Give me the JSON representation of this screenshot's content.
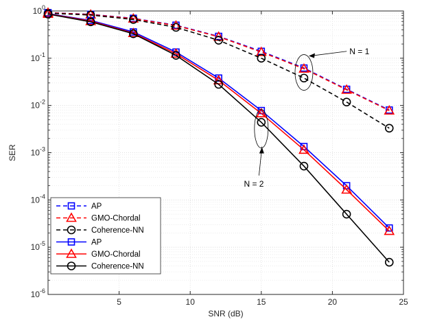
{
  "chart_data": {
    "type": "line",
    "title": "",
    "xlabel": "SNR (dB)",
    "ylabel": "SER",
    "xlim": [
      0,
      25
    ],
    "ylim": [
      1e-06,
      1
    ],
    "yscale": "log",
    "grid": true,
    "x_ticks": [
      5,
      10,
      15,
      20,
      25
    ],
    "x_tick_labels": [
      "5",
      "10",
      "15",
      "20",
      "25"
    ],
    "y_ticks": [
      1e-06,
      1e-05,
      0.0001,
      0.001,
      0.01,
      0.1,
      1
    ],
    "y_tick_labels": [
      {
        "base": "10",
        "exp": "-6"
      },
      {
        "base": "10",
        "exp": "-5"
      },
      {
        "base": "10",
        "exp": "-4"
      },
      {
        "base": "10",
        "exp": "-3"
      },
      {
        "base": "10",
        "exp": "-2"
      },
      {
        "base": "10",
        "exp": "-1"
      },
      {
        "base": "10",
        "exp": "0"
      }
    ],
    "legend_position": "bottom-left",
    "x": [
      0,
      3,
      6,
      9,
      12,
      15,
      18,
      21,
      24
    ],
    "series": [
      {
        "name": "AP",
        "color": "#0000ff",
        "dashed": true,
        "marker": "square",
        "values": [
          0.92,
          0.85,
          0.7,
          0.5,
          0.29,
          0.14,
          0.062,
          0.022,
          0.008
        ]
      },
      {
        "name": "GMO-Chordal",
        "color": "#ff0000",
        "dashed": true,
        "marker": "triangle",
        "values": [
          0.92,
          0.84,
          0.69,
          0.49,
          0.285,
          0.135,
          0.06,
          0.0215,
          0.0078
        ]
      },
      {
        "name": "Coherence-NN",
        "color": "#000000",
        "dashed": true,
        "marker": "circle",
        "values": [
          0.9,
          0.82,
          0.66,
          0.45,
          0.24,
          0.1,
          0.038,
          0.0118,
          0.0033
        ]
      },
      {
        "name": "AP",
        "color": "#0000ff",
        "dashed": false,
        "marker": "square",
        "values": [
          0.88,
          0.63,
          0.36,
          0.135,
          0.038,
          0.0078,
          0.00135,
          0.0002,
          2.55e-05
        ]
      },
      {
        "name": "GMO-Chordal",
        "color": "#ff0000",
        "dashed": false,
        "marker": "triangle",
        "values": [
          0.87,
          0.61,
          0.34,
          0.125,
          0.034,
          0.0068,
          0.00115,
          0.000165,
          2.2e-05
        ]
      },
      {
        "name": "Coherence-NN",
        "color": "#000000",
        "dashed": false,
        "marker": "circle",
        "values": [
          0.86,
          0.59,
          0.33,
          0.115,
          0.028,
          0.0044,
          0.00052,
          5e-05,
          4.8e-06
        ]
      }
    ],
    "annotations": [
      {
        "text": "N = 1",
        "target_x": 18,
        "target_y": 0.05,
        "text_x": 21.2,
        "text_y": 0.14
      },
      {
        "text": "N = 2",
        "target_x": 15,
        "target_y": 0.0045,
        "text_x": 14.5,
        "text_y": 0.00022
      }
    ]
  }
}
